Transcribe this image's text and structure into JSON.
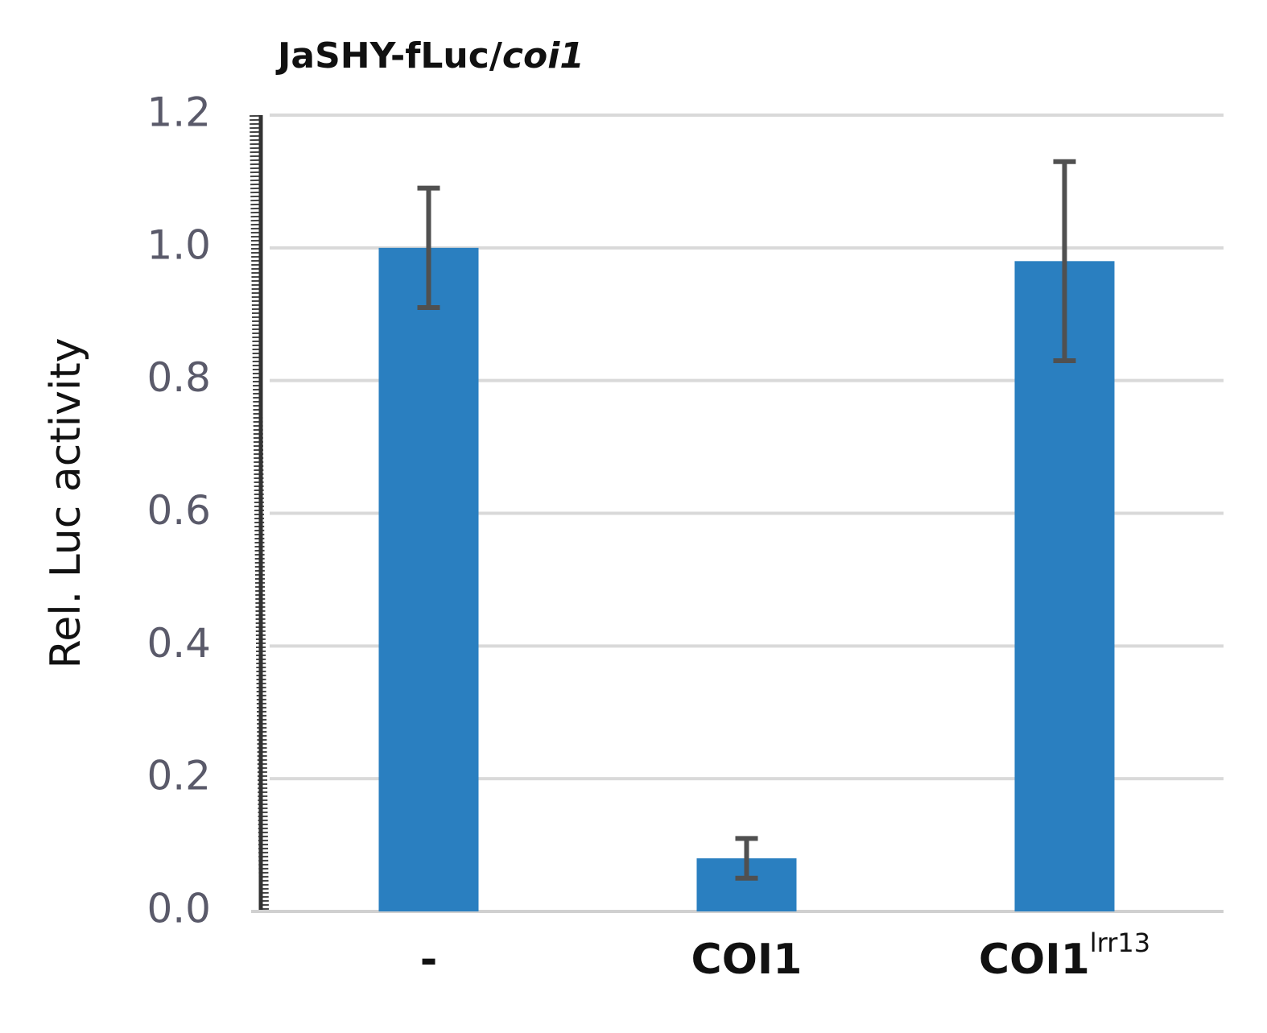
{
  "chart_data": {
    "type": "bar",
    "title": "JaSHY-fLuc/",
    "title_italic": "coi1",
    "ylabel": "Rel. Luc activity",
    "categories": [
      "-",
      "COI1",
      "COI1"
    ],
    "category_superscripts": [
      null,
      null,
      "lrr13"
    ],
    "values": [
      1.0,
      0.08,
      0.98
    ],
    "errors": [
      0.09,
      0.03,
      0.15
    ],
    "color": "#2a7fc0",
    "error_color": "#505050",
    "ylim": [
      0,
      1.2
    ],
    "yticks": [
      {
        "value": 0,
        "label": "0.0"
      },
      0.2,
      0.4,
      0.6,
      0.8,
      {
        "value": 1,
        "label": "1.0"
      },
      1.2
    ],
    "grid": true
  }
}
